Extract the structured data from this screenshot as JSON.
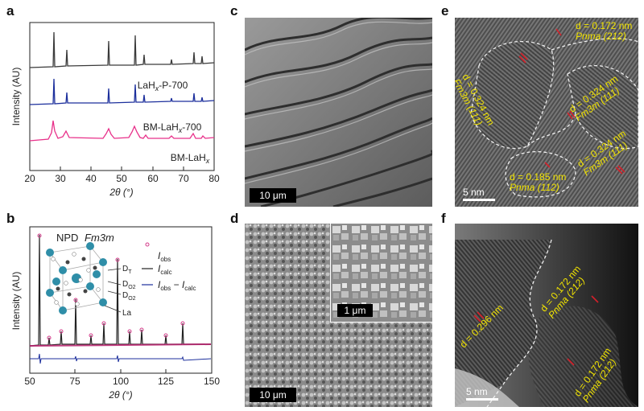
{
  "panels": {
    "a": {
      "letter": "a",
      "ylabel": "Intensity (AU)",
      "xlabel": "2θ (°)",
      "xticks": [
        "20",
        "30",
        "40",
        "50",
        "60",
        "70",
        "80"
      ],
      "series": [
        {
          "name": "LaHx-P-700",
          "label_main": "LaH",
          "label_sub": "x",
          "label_tail": "-P-700",
          "color": "#3a3a3a"
        },
        {
          "name": "BM-LaHx-700",
          "label_main": "BM-LaH",
          "label_sub": "x",
          "label_tail": "-700",
          "color": "#1c2f9c"
        },
        {
          "name": "BM-LaHx",
          "label_main": "BM-LaH",
          "label_sub": "x",
          "label_tail": "",
          "color": "#e8318a"
        }
      ]
    },
    "b": {
      "letter": "b",
      "ylabel": "Intensity (AU)",
      "xlabel": "2θ (°)",
      "xticks": [
        "50",
        "75",
        "100",
        "125",
        "150"
      ],
      "inset_title": "NPD",
      "space_group": "Fm3m",
      "legend": {
        "obs_main": "I",
        "obs_sub": "obs",
        "calc_main": "I",
        "calc_sub": "calc",
        "diff_main1": "I",
        "diff_sub1": "obs",
        "diff_mid": " − ",
        "diff_main2": "I",
        "diff_sub2": "calc"
      },
      "atoms": {
        "dt_main": "D",
        "dt_sub": "T",
        "do2a_main": "D",
        "do2a_sub": "O2",
        "do2b_main": "D",
        "do2b_sub": "O2",
        "la": "La"
      }
    },
    "c": {
      "letter": "c",
      "scalebar": "10 μm"
    },
    "d": {
      "letter": "d",
      "scalebar": "10 μm",
      "inset_scalebar": "1 μm"
    },
    "e": {
      "letter": "e",
      "scalebar": "5 nm",
      "annotations": [
        {
          "d": "d = 0.172 nm",
          "phase": "Pnma (212)"
        },
        {
          "d": "d = 0.324 nm",
          "phase": "Fm3m (111)"
        },
        {
          "d": "d = 0.324 nm",
          "phase": "Fm3m (111)"
        },
        {
          "d": "d = 0.324 nm",
          "phase": "Fm3m (111)"
        },
        {
          "d": "d = 0.185 nm",
          "phase": "Pnma (112)"
        }
      ]
    },
    "f": {
      "letter": "f",
      "scalebar": "5 nm",
      "annotations": [
        {
          "d": "d = 0.296 nm",
          "phase": ""
        },
        {
          "d": "d = 0.172 nm",
          "phase": "Pnma (212)"
        },
        {
          "d": "d = 0.172 nm",
          "phase": "Pnma (212)"
        }
      ]
    }
  }
}
